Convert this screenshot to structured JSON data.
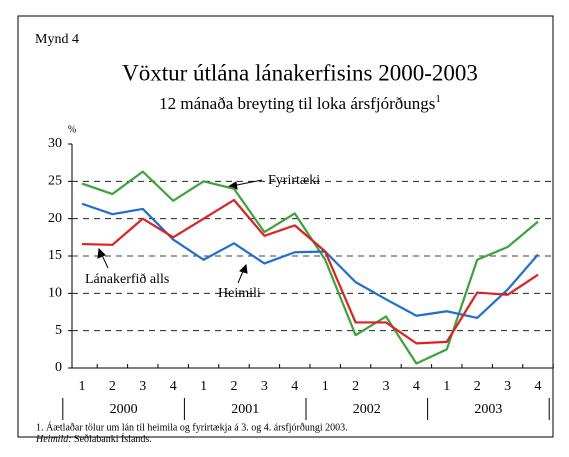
{
  "chart_data": {
    "type": "line",
    "figure_label": "Mynd 4",
    "title": "Vöxtur útlána lánakerfisins 2000-2003",
    "subtitle": "12 mánaða breyting til loka ársfjórðungs",
    "subtitle_note": "1",
    "y_unit": "%",
    "categories": [
      "1",
      "2",
      "3",
      "4",
      "1",
      "2",
      "3",
      "4",
      "1",
      "2",
      "3",
      "4",
      "1",
      "2",
      "3",
      "4"
    ],
    "years": [
      "2000",
      "2001",
      "2002",
      "2003"
    ],
    "series": [
      {
        "name": "Fyrirtæki",
        "color": "#3aa33a",
        "values": [
          24.7,
          23.3,
          26.3,
          22.4,
          25,
          24,
          18.2,
          20.7,
          14.5,
          4.4,
          6.9,
          0.6,
          2.5,
          14.5,
          16.2,
          19.6
        ]
      },
      {
        "name": "Heimili",
        "color": "#1f6fd0",
        "values": [
          22,
          20.6,
          21.3,
          17.2,
          14.5,
          16.7,
          14,
          15.5,
          15.6,
          11.5,
          9.2,
          7,
          7.6,
          6.7,
          10.5,
          15.2
        ]
      },
      {
        "name": "Lánakerfið alls",
        "color": "#e02020",
        "values": [
          16.6,
          16.5,
          20,
          17.5,
          20,
          22.5,
          17.7,
          19.1,
          15.6,
          6.1,
          6.1,
          3.3,
          3.5,
          10.1,
          9.8,
          12.5
        ]
      }
    ],
    "ylim": [
      0,
      30
    ],
    "yticks": [
      0,
      5,
      10,
      15,
      20,
      25,
      30
    ],
    "grid": true,
    "footnote": "1. Áætlaðar tölur um lán til heimila og fyrirtækja á 3. og 4. ársfjórðungi 2003.",
    "source_label": "Heimild:",
    "source": "Seðlabanki Íslands."
  }
}
